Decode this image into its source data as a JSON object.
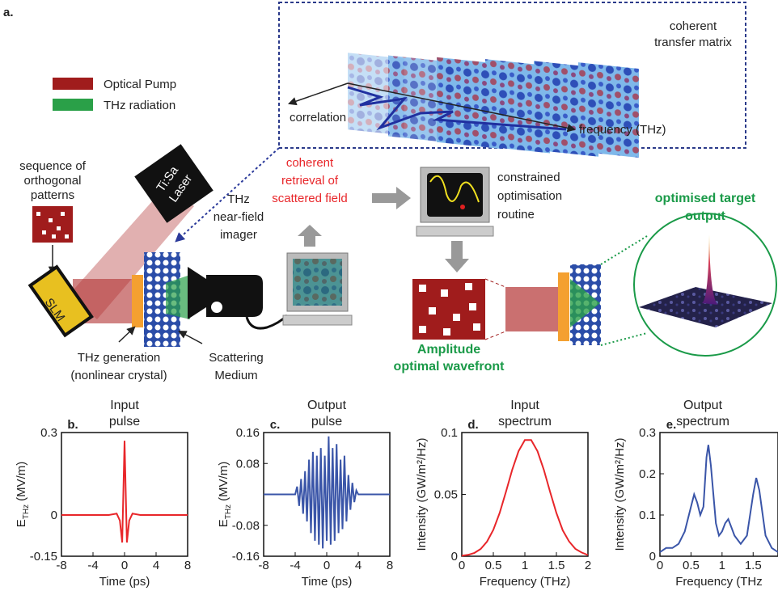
{
  "diagram": {
    "panel": "a.",
    "legend": [
      "Optical Pump",
      "THz radiation"
    ],
    "matrix_title": [
      "coherent",
      "transfer matrix"
    ],
    "correlation": "correlation",
    "frequency": "frequency (THz)",
    "patterns": [
      "sequence of",
      "orthogonal",
      "patterns"
    ],
    "laser": [
      "Ti:Sa",
      "Laser"
    ],
    "slm": "SLM",
    "imager": [
      "THz",
      "near-field",
      "imager"
    ],
    "retrieval": [
      "coherent",
      "retrieval of",
      "scattered field"
    ],
    "routine": [
      "constrained",
      "optimisation",
      "routine"
    ],
    "target": [
      "optimised target",
      "output"
    ],
    "wavefront": [
      "Amplitude",
      "optimal wavefront"
    ],
    "generation": [
      "THz generation",
      "(nonlinear crystal)"
    ],
    "medium": [
      "Scattering",
      "Medium"
    ]
  },
  "chart_data": [
    {
      "type": "line",
      "panel": "b.",
      "title": [
        "Input",
        "pulse"
      ],
      "color": "#e8262a",
      "xlabel": "Time (ps)",
      "ylabel": {
        "main": "E",
        "sub": "THz",
        "rest": "(MV/m)"
      },
      "x": [
        -8,
        -6,
        -4,
        -2,
        -1,
        -0.6,
        -0.3,
        0,
        0.3,
        0.6,
        1,
        2,
        4,
        6,
        8
      ],
      "values": [
        0,
        0,
        0,
        0,
        0.005,
        -0.02,
        -0.1,
        0.27,
        -0.1,
        -0.02,
        0.005,
        0,
        0,
        0,
        0
      ],
      "xlim": [
        -8,
        8
      ],
      "xticks": [
        -8,
        -4,
        0,
        4,
        8
      ],
      "ylim": [
        -0.15,
        0.3
      ],
      "yticks": [
        -0.15,
        0,
        0.3
      ]
    },
    {
      "type": "line",
      "panel": "c.",
      "title": [
        "Output",
        "pulse"
      ],
      "color": "#3a55a8",
      "xlabel": "Time (ps)",
      "ylabel": {
        "main": "E",
        "sub": "THz",
        "rest": "(MV/m)"
      },
      "x": [
        -8,
        -6,
        -4.5,
        -4,
        -3.75,
        -3.5,
        -3.25,
        -3,
        -2.75,
        -2.5,
        -2.25,
        -2,
        -1.75,
        -1.5,
        -1.25,
        -1,
        -0.75,
        -0.5,
        -0.25,
        0,
        0.25,
        0.5,
        0.75,
        1,
        1.25,
        1.5,
        1.75,
        2,
        2.25,
        2.5,
        2.75,
        3,
        3.25,
        3.5,
        3.75,
        4,
        4.5,
        6,
        8
      ],
      "values": [
        0,
        0,
        0,
        0,
        0.02,
        -0.03,
        0.04,
        -0.05,
        0.06,
        -0.07,
        0.09,
        -0.1,
        0.11,
        -0.12,
        0.1,
        -0.13,
        0.12,
        -0.14,
        0.1,
        -0.12,
        0.15,
        -0.13,
        0.12,
        -0.12,
        0.13,
        -0.1,
        0.09,
        -0.09,
        0.1,
        -0.07,
        0.05,
        -0.04,
        0.03,
        -0.02,
        0.01,
        0,
        0,
        0,
        0
      ],
      "xlim": [
        -8,
        8
      ],
      "xticks": [
        -8,
        -4,
        0,
        4,
        8
      ],
      "ylim": [
        -0.16,
        0.16
      ],
      "yticks": [
        -0.16,
        -0.08,
        0.08,
        0.16
      ]
    },
    {
      "type": "line",
      "panel": "d.",
      "title": [
        "Input",
        "spectrum"
      ],
      "color": "#e8262a",
      "xlabel": "Frequency (THz)",
      "ylabel": {
        "main": "Intensity (GW/m²/Hz)"
      },
      "x": [
        0,
        0.1,
        0.2,
        0.3,
        0.4,
        0.5,
        0.6,
        0.7,
        0.8,
        0.9,
        1.0,
        1.1,
        1.2,
        1.3,
        1.4,
        1.5,
        1.6,
        1.7,
        1.8,
        1.9,
        2.0
      ],
      "values": [
        0.0004,
        0.0011,
        0.0027,
        0.0059,
        0.0118,
        0.0214,
        0.035,
        0.052,
        0.07,
        0.085,
        0.094,
        0.094,
        0.085,
        0.07,
        0.052,
        0.035,
        0.021,
        0.012,
        0.006,
        0.003,
        0.001
      ],
      "xlim": [
        0,
        2
      ],
      "xticks": [
        0,
        0.5,
        1,
        1.5,
        2
      ],
      "ylim": [
        0,
        0.1
      ],
      "yticks": [
        0,
        0.05,
        0.1
      ]
    },
    {
      "type": "line",
      "panel": "e.",
      "title": [
        "Output",
        "spectrum"
      ],
      "color": "#3a55a8",
      "xlabel": "Frequency (THz",
      "ylabel": {
        "main": "Intensity (GW/m²/Hz)"
      },
      "x": [
        0,
        0.1,
        0.2,
        0.3,
        0.4,
        0.5,
        0.55,
        0.6,
        0.65,
        0.7,
        0.75,
        0.78,
        0.82,
        0.9,
        0.95,
        1.0,
        1.05,
        1.1,
        1.15,
        1.2,
        1.3,
        1.4,
        1.5,
        1.55,
        1.6,
        1.7,
        1.8,
        1.9
      ],
      "values": [
        0.01,
        0.02,
        0.02,
        0.03,
        0.06,
        0.12,
        0.15,
        0.13,
        0.1,
        0.12,
        0.24,
        0.27,
        0.22,
        0.08,
        0.05,
        0.06,
        0.08,
        0.09,
        0.07,
        0.05,
        0.03,
        0.05,
        0.15,
        0.19,
        0.16,
        0.05,
        0.02,
        0.01
      ],
      "xlim": [
        0,
        1.9
      ],
      "xticks": [
        0,
        0.5,
        1,
        1.5
      ],
      "ylim": [
        0,
        0.3
      ],
      "yticks": [
        0,
        0.1,
        0.2,
        0.3
      ]
    }
  ]
}
